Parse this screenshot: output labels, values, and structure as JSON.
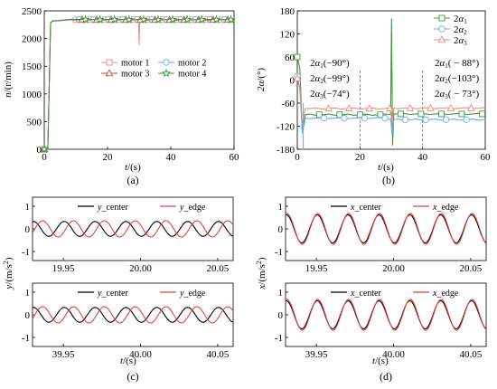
{
  "captions": [
    "(a)",
    "(b)",
    "(c)",
    "(d)"
  ],
  "colors": {
    "red": "#e8413c",
    "blue": "#4a90d9",
    "green": "#3a9a3a",
    "black": "#000000",
    "salmon": "#f08a80",
    "brown": "#c04a3a",
    "lightblue": "#6aaee8"
  },
  "chart_data": [
    {
      "id": "a",
      "type": "line",
      "xlabel_var": "t",
      "xlabel_unit": "/(s)",
      "ylabel_var": "n",
      "ylabel_unit": "/(r/min)",
      "xlim": [
        0,
        60
      ],
      "ylim": [
        0,
        2500
      ],
      "xticks": [
        0,
        20,
        40,
        60
      ],
      "yticks": [
        0,
        500,
        1000,
        1500,
        2000,
        2500
      ],
      "grid": false,
      "legend_position": "center-right",
      "series": [
        {
          "name": "motor 1",
          "color": "#f08a80",
          "marker": "square",
          "steady": 2340,
          "rise_time": 2.0,
          "dip_t": 30,
          "dip_value": 1880
        },
        {
          "name": "motor 2",
          "color": "#6aaee8",
          "marker": "circle",
          "steady": 2345,
          "rise_time": 2.0
        },
        {
          "name": "motor 3",
          "color": "#c04a3a",
          "marker": "triangle",
          "steady": 2338,
          "rise_time": 2.0
        },
        {
          "name": "motor 4",
          "color": "#3a9a3a",
          "marker": "star",
          "steady": 2342,
          "rise_time": 2.0
        }
      ]
    },
    {
      "id": "b",
      "type": "line",
      "xlabel_var": "t",
      "xlabel_unit": "/(s)",
      "ylabel_var": "2α",
      "ylabel_unit": "/(°)",
      "xlim": [
        0,
        60
      ],
      "ylim": [
        -180,
        180
      ],
      "xticks": [
        0,
        20,
        40,
        60
      ],
      "yticks": [
        -180,
        -120,
        -60,
        0,
        60,
        120,
        180
      ],
      "grid": false,
      "legend_position": "top-right",
      "series": [
        {
          "name": "2α1",
          "sub": "1",
          "color": "#3a9a3a",
          "marker": "square",
          "steady_before": -90,
          "steady_after": -88
        },
        {
          "name": "2α2",
          "sub": "2",
          "color": "#6aaee8",
          "marker": "circle",
          "steady_before": -99,
          "steady_after": -103
        },
        {
          "name": "2α3",
          "sub": "3",
          "color": "#f08a80",
          "marker": "triangle",
          "steady_before": -74,
          "steady_after": -73
        }
      ],
      "annotations": [
        {
          "sub": "1",
          "text": "(−90°)"
        },
        {
          "sub": "2",
          "text": "(−99°)"
        },
        {
          "sub": "3",
          "text": "(−74°)"
        },
        {
          "sub": "1",
          "text": "( − 88°)"
        },
        {
          "sub": "2",
          "text": "(−103°)"
        },
        {
          "sub": "3",
          "text": "( − 73°)"
        }
      ],
      "dashed_lines_x": [
        20,
        40
      ]
    },
    {
      "id": "c1",
      "type": "line",
      "xlim": [
        19.93,
        20.06
      ],
      "ylim": [
        -1.4,
        1.4
      ],
      "xticks": [
        19.95,
        20.0,
        20.05
      ],
      "xtick_labels": [
        "19.95",
        "20.00",
        "20.05"
      ],
      "yticks": [
        -1,
        0,
        1
      ],
      "legend_position": "top",
      "series": [
        {
          "name": "y_center",
          "var": "y",
          "suffix": "_center",
          "color": "#000000",
          "amplitude": 0.33,
          "period": 0.02,
          "phase": 0.0
        },
        {
          "name": "y_edge",
          "var": "y",
          "suffix": "_edge",
          "color": "#e8413c",
          "amplitude": 0.36,
          "period": 0.02,
          "phase": 0.006
        }
      ]
    },
    {
      "id": "c2",
      "type": "line",
      "xlim": [
        39.93,
        40.06
      ],
      "ylim": [
        -1.4,
        1.4
      ],
      "xticks": [
        39.95,
        40.0,
        40.05
      ],
      "xtick_labels": [
        "39.95",
        "40.00",
        "40.05"
      ],
      "yticks": [
        -1,
        0,
        1
      ],
      "legend_position": "top",
      "xlabel_var": "t",
      "xlabel_unit": "/(s)",
      "series": [
        {
          "name": "y_center",
          "var": "y",
          "suffix": "_center",
          "color": "#000000",
          "amplitude": 0.33,
          "period": 0.02,
          "phase": 0.0
        },
        {
          "name": "y_edge",
          "var": "y",
          "suffix": "_edge",
          "color": "#e8413c",
          "amplitude": 0.36,
          "period": 0.02,
          "phase": 0.006
        }
      ]
    },
    {
      "id": "d1",
      "type": "line",
      "xlim": [
        19.93,
        20.06
      ],
      "ylim": [
        -1.4,
        1.4
      ],
      "xticks": [
        19.95,
        20.0,
        20.05
      ],
      "xtick_labels": [
        "19.95",
        "20.00",
        "20.05"
      ],
      "yticks": [
        -1,
        0,
        1
      ],
      "legend_position": "top",
      "series": [
        {
          "name": "x_center",
          "var": "x",
          "suffix": "_center",
          "color": "#000000",
          "amplitude": 0.62,
          "period": 0.02,
          "phase": 0.0
        },
        {
          "name": "x_edge",
          "var": "x",
          "suffix": "_edge",
          "color": "#e8413c",
          "amplitude": 0.68,
          "period": 0.02,
          "phase": 0.0003
        }
      ]
    },
    {
      "id": "d2",
      "type": "line",
      "xlim": [
        39.93,
        40.06
      ],
      "ylim": [
        -1.4,
        1.4
      ],
      "xticks": [
        39.95,
        40.0,
        40.05
      ],
      "xtick_labels": [
        "39.95",
        "40.00",
        "40.05"
      ],
      "yticks": [
        -1,
        0,
        1
      ],
      "legend_position": "top",
      "xlabel_var": "t",
      "xlabel_unit": "/(s)",
      "series": [
        {
          "name": "x_center",
          "var": "x",
          "suffix": "_center",
          "color": "#000000",
          "amplitude": 0.62,
          "period": 0.02,
          "phase": 0.0
        },
        {
          "name": "x_edge",
          "var": "x",
          "suffix": "_edge",
          "color": "#e8413c",
          "amplitude": 0.68,
          "period": 0.02,
          "phase": 0.0003
        }
      ]
    }
  ],
  "shared_ylabels": {
    "c_var": "y",
    "c_unit": "/(m/s",
    "c_sup": "2",
    "c_close": ")",
    "d_var": "x",
    "d_unit": "/(m/s",
    "d_sup": "2",
    "d_close": ")"
  }
}
